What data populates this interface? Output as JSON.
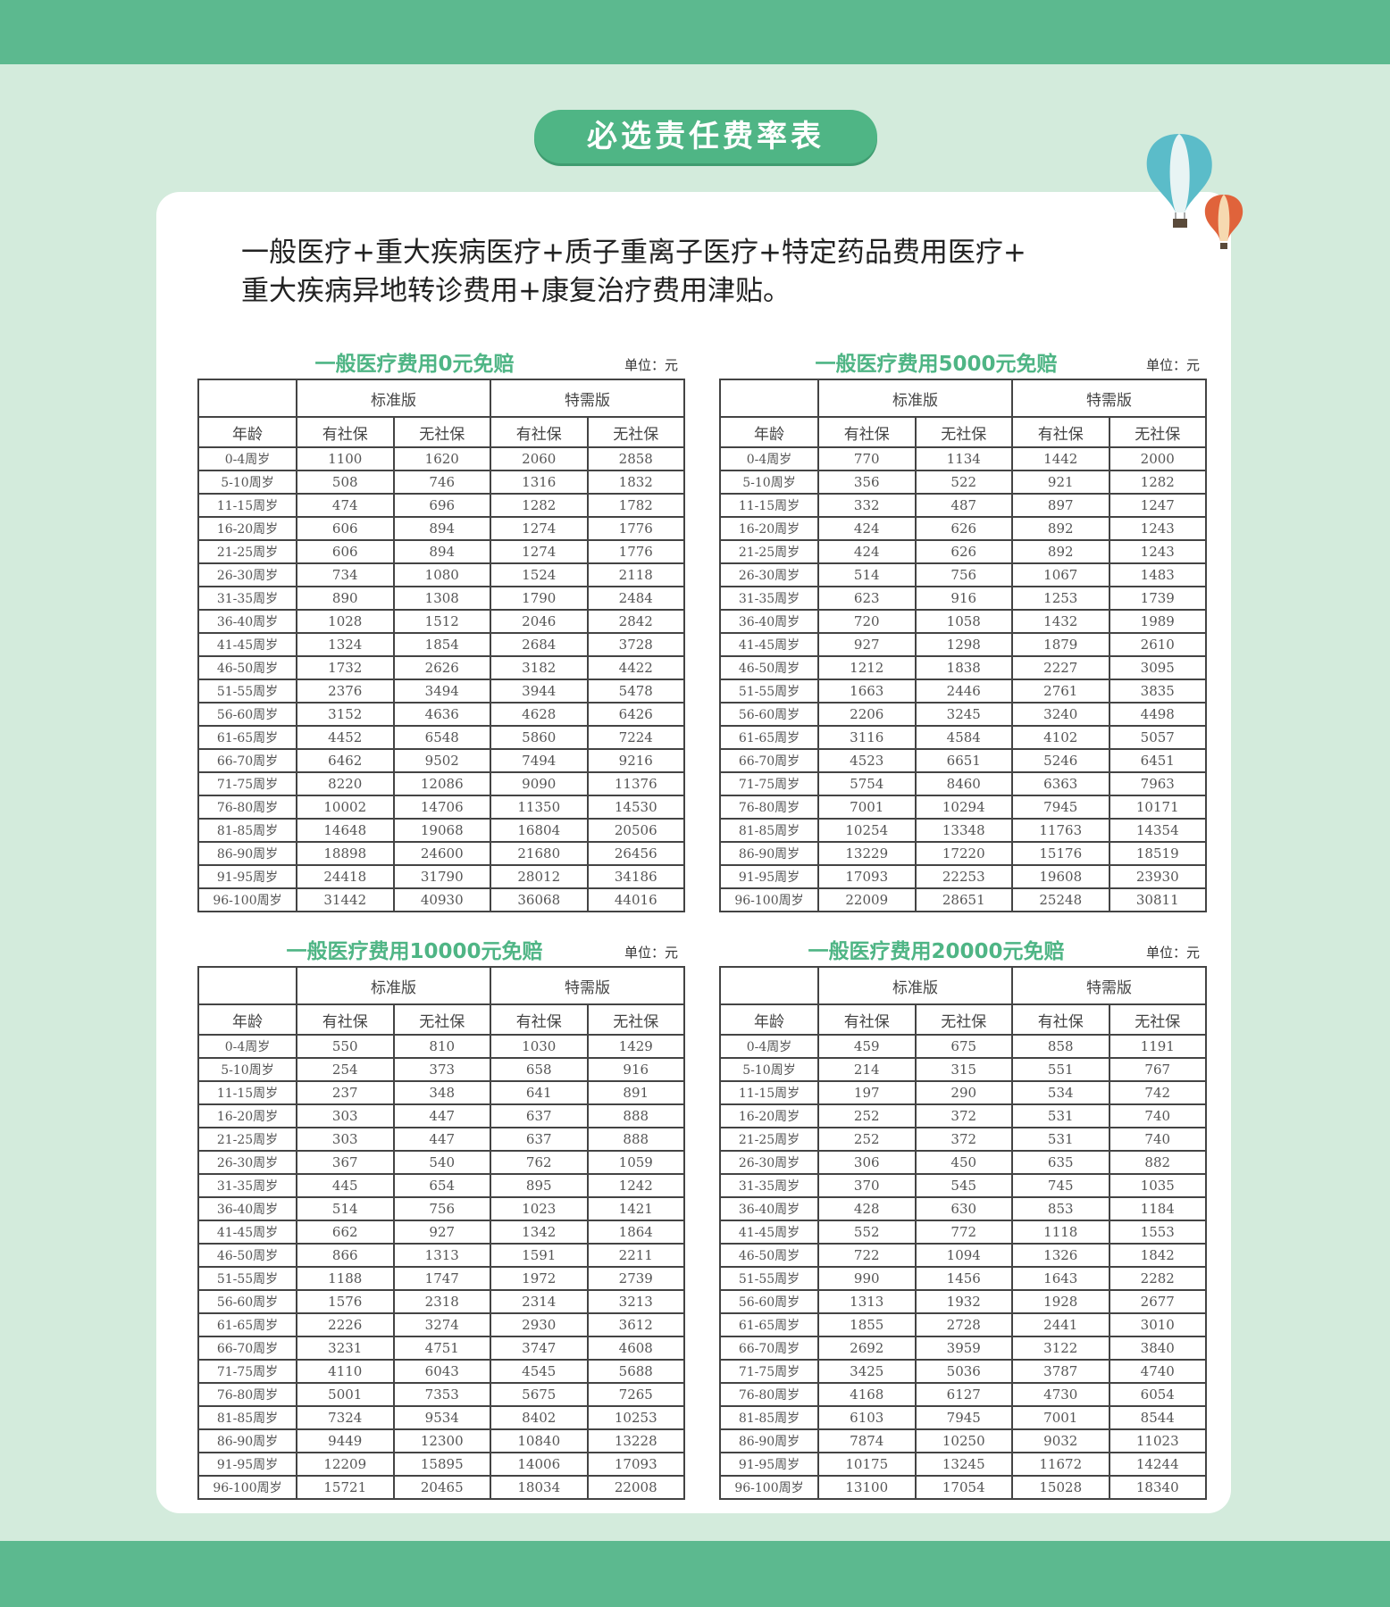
{
  "header_title": "必选责任费率表",
  "intro_line1": "一般医疗+重大疾病医疗+质子重离子医疗+特定药品费用医疗+",
  "intro_line2": "重大疾病异地转诊费用+康复治疗费用津贴。",
  "colors": {
    "band": "#5cb98f",
    "background": "#d3ebdc",
    "accent": "#4fb585"
  },
  "icons": [
    "hot-air-balloon-blue",
    "hot-air-balloon-red"
  ],
  "columns": {
    "age": "年龄",
    "group1": "标准版",
    "group2": "特需版",
    "sub1": "有社保",
    "sub2": "无社保",
    "sub3": "有社保",
    "sub4": "无社保"
  },
  "tables": [
    {
      "title": "一般医疗费用0元免赔",
      "unit": "单位：元",
      "rows": [
        [
          "0-4周岁",
          "1100",
          "1620",
          "2060",
          "2858"
        ],
        [
          "5-10周岁",
          "508",
          "746",
          "1316",
          "1832"
        ],
        [
          "11-15周岁",
          "474",
          "696",
          "1282",
          "1782"
        ],
        [
          "16-20周岁",
          "606",
          "894",
          "1274",
          "1776"
        ],
        [
          "21-25周岁",
          "606",
          "894",
          "1274",
          "1776"
        ],
        [
          "26-30周岁",
          "734",
          "1080",
          "1524",
          "2118"
        ],
        [
          "31-35周岁",
          "890",
          "1308",
          "1790",
          "2484"
        ],
        [
          "36-40周岁",
          "1028",
          "1512",
          "2046",
          "2842"
        ],
        [
          "41-45周岁",
          "1324",
          "1854",
          "2684",
          "3728"
        ],
        [
          "46-50周岁",
          "1732",
          "2626",
          "3182",
          "4422"
        ],
        [
          "51-55周岁",
          "2376",
          "3494",
          "3944",
          "5478"
        ],
        [
          "56-60周岁",
          "3152",
          "4636",
          "4628",
          "6426"
        ],
        [
          "61-65周岁",
          "4452",
          "6548",
          "5860",
          "7224"
        ],
        [
          "66-70周岁",
          "6462",
          "9502",
          "7494",
          "9216"
        ],
        [
          "71-75周岁",
          "8220",
          "12086",
          "9090",
          "11376"
        ],
        [
          "76-80周岁",
          "10002",
          "14706",
          "11350",
          "14530"
        ],
        [
          "81-85周岁",
          "14648",
          "19068",
          "16804",
          "20506"
        ],
        [
          "86-90周岁",
          "18898",
          "24600",
          "21680",
          "26456"
        ],
        [
          "91-95周岁",
          "24418",
          "31790",
          "28012",
          "34186"
        ],
        [
          "96-100周岁",
          "31442",
          "40930",
          "36068",
          "44016"
        ]
      ]
    },
    {
      "title": "一般医疗费用5000元免赔",
      "unit": "单位：元",
      "rows": [
        [
          "0-4周岁",
          "770",
          "1134",
          "1442",
          "2000"
        ],
        [
          "5-10周岁",
          "356",
          "522",
          "921",
          "1282"
        ],
        [
          "11-15周岁",
          "332",
          "487",
          "897",
          "1247"
        ],
        [
          "16-20周岁",
          "424",
          "626",
          "892",
          "1243"
        ],
        [
          "21-25周岁",
          "424",
          "626",
          "892",
          "1243"
        ],
        [
          "26-30周岁",
          "514",
          "756",
          "1067",
          "1483"
        ],
        [
          "31-35周岁",
          "623",
          "916",
          "1253",
          "1739"
        ],
        [
          "36-40周岁",
          "720",
          "1058",
          "1432",
          "1989"
        ],
        [
          "41-45周岁",
          "927",
          "1298",
          "1879",
          "2610"
        ],
        [
          "46-50周岁",
          "1212",
          "1838",
          "2227",
          "3095"
        ],
        [
          "51-55周岁",
          "1663",
          "2446",
          "2761",
          "3835"
        ],
        [
          "56-60周岁",
          "2206",
          "3245",
          "3240",
          "4498"
        ],
        [
          "61-65周岁",
          "3116",
          "4584",
          "4102",
          "5057"
        ],
        [
          "66-70周岁",
          "4523",
          "6651",
          "5246",
          "6451"
        ],
        [
          "71-75周岁",
          "5754",
          "8460",
          "6363",
          "7963"
        ],
        [
          "76-80周岁",
          "7001",
          "10294",
          "7945",
          "10171"
        ],
        [
          "81-85周岁",
          "10254",
          "13348",
          "11763",
          "14354"
        ],
        [
          "86-90周岁",
          "13229",
          "17220",
          "15176",
          "18519"
        ],
        [
          "91-95周岁",
          "17093",
          "22253",
          "19608",
          "23930"
        ],
        [
          "96-100周岁",
          "22009",
          "28651",
          "25248",
          "30811"
        ]
      ]
    },
    {
      "title": "一般医疗费用10000元免赔",
      "unit": "单位：元",
      "rows": [
        [
          "0-4周岁",
          "550",
          "810",
          "1030",
          "1429"
        ],
        [
          "5-10周岁",
          "254",
          "373",
          "658",
          "916"
        ],
        [
          "11-15周岁",
          "237",
          "348",
          "641",
          "891"
        ],
        [
          "16-20周岁",
          "303",
          "447",
          "637",
          "888"
        ],
        [
          "21-25周岁",
          "303",
          "447",
          "637",
          "888"
        ],
        [
          "26-30周岁",
          "367",
          "540",
          "762",
          "1059"
        ],
        [
          "31-35周岁",
          "445",
          "654",
          "895",
          "1242"
        ],
        [
          "36-40周岁",
          "514",
          "756",
          "1023",
          "1421"
        ],
        [
          "41-45周岁",
          "662",
          "927",
          "1342",
          "1864"
        ],
        [
          "46-50周岁",
          "866",
          "1313",
          "1591",
          "2211"
        ],
        [
          "51-55周岁",
          "1188",
          "1747",
          "1972",
          "2739"
        ],
        [
          "56-60周岁",
          "1576",
          "2318",
          "2314",
          "3213"
        ],
        [
          "61-65周岁",
          "2226",
          "3274",
          "2930",
          "3612"
        ],
        [
          "66-70周岁",
          "3231",
          "4751",
          "3747",
          "4608"
        ],
        [
          "71-75周岁",
          "4110",
          "6043",
          "4545",
          "5688"
        ],
        [
          "76-80周岁",
          "5001",
          "7353",
          "5675",
          "7265"
        ],
        [
          "81-85周岁",
          "7324",
          "9534",
          "8402",
          "10253"
        ],
        [
          "86-90周岁",
          "9449",
          "12300",
          "10840",
          "13228"
        ],
        [
          "91-95周岁",
          "12209",
          "15895",
          "14006",
          "17093"
        ],
        [
          "96-100周岁",
          "15721",
          "20465",
          "18034",
          "22008"
        ]
      ]
    },
    {
      "title": "一般医疗费用20000元免赔",
      "unit": "单位：元",
      "rows": [
        [
          "0-4周岁",
          "459",
          "675",
          "858",
          "1191"
        ],
        [
          "5-10周岁",
          "214",
          "315",
          "551",
          "767"
        ],
        [
          "11-15周岁",
          "197",
          "290",
          "534",
          "742"
        ],
        [
          "16-20周岁",
          "252",
          "372",
          "531",
          "740"
        ],
        [
          "21-25周岁",
          "252",
          "372",
          "531",
          "740"
        ],
        [
          "26-30周岁",
          "306",
          "450",
          "635",
          "882"
        ],
        [
          "31-35周岁",
          "370",
          "545",
          "745",
          "1035"
        ],
        [
          "36-40周岁",
          "428",
          "630",
          "853",
          "1184"
        ],
        [
          "41-45周岁",
          "552",
          "772",
          "1118",
          "1553"
        ],
        [
          "46-50周岁",
          "722",
          "1094",
          "1326",
          "1842"
        ],
        [
          "51-55周岁",
          "990",
          "1456",
          "1643",
          "2282"
        ],
        [
          "56-60周岁",
          "1313",
          "1932",
          "1928",
          "2677"
        ],
        [
          "61-65周岁",
          "1855",
          "2728",
          "2441",
          "3010"
        ],
        [
          "66-70周岁",
          "2692",
          "3959",
          "3122",
          "3840"
        ],
        [
          "71-75周岁",
          "3425",
          "5036",
          "3787",
          "4740"
        ],
        [
          "76-80周岁",
          "4168",
          "6127",
          "4730",
          "6054"
        ],
        [
          "81-85周岁",
          "6103",
          "7945",
          "7001",
          "8544"
        ],
        [
          "86-90周岁",
          "7874",
          "10250",
          "9032",
          "11023"
        ],
        [
          "91-95周岁",
          "10175",
          "13245",
          "11672",
          "14244"
        ],
        [
          "96-100周岁",
          "13100",
          "17054",
          "15028",
          "18340"
        ]
      ]
    }
  ]
}
